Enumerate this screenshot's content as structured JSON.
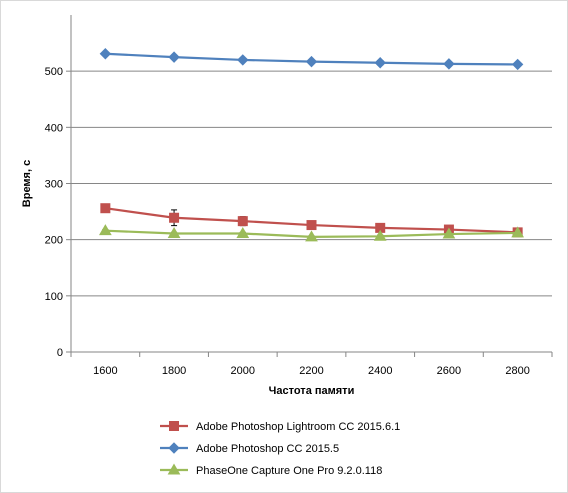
{
  "chart_data": {
    "type": "line",
    "title": "",
    "xlabel": "Частота  памяти",
    "ylabel": "Время, с",
    "x": [
      1600,
      1800,
      2000,
      2200,
      2400,
      2600,
      2800
    ],
    "ylim": [
      0,
      600
    ],
    "yticks": [
      0,
      100,
      200,
      300,
      400,
      500
    ],
    "grid": true,
    "legend_position": "bottom",
    "series": [
      {
        "name": "Adobe Photoshop Lightroom CC 2015.6.1",
        "color": "#c0504d",
        "marker": "square",
        "values": [
          256,
          239,
          233,
          226,
          221,
          218,
          213
        ],
        "errors": [
          3,
          14,
          8,
          7,
          5,
          4,
          6
        ]
      },
      {
        "name": "Adobe Photoshop CC 2015.5",
        "color": "#4f81bd",
        "marker": "diamond",
        "values": [
          531,
          525,
          520,
          517,
          515,
          513,
          512
        ],
        "errors": [
          1,
          1,
          1,
          2,
          4,
          2,
          3
        ]
      },
      {
        "name": "PhaseOne Capture One Pro 9.2.0.118",
        "color": "#9bbb59",
        "marker": "triangle",
        "values": [
          216,
          211,
          211,
          205,
          206,
          210,
          212
        ],
        "errors": [
          2,
          2,
          2,
          2,
          2,
          2,
          2
        ]
      }
    ]
  }
}
